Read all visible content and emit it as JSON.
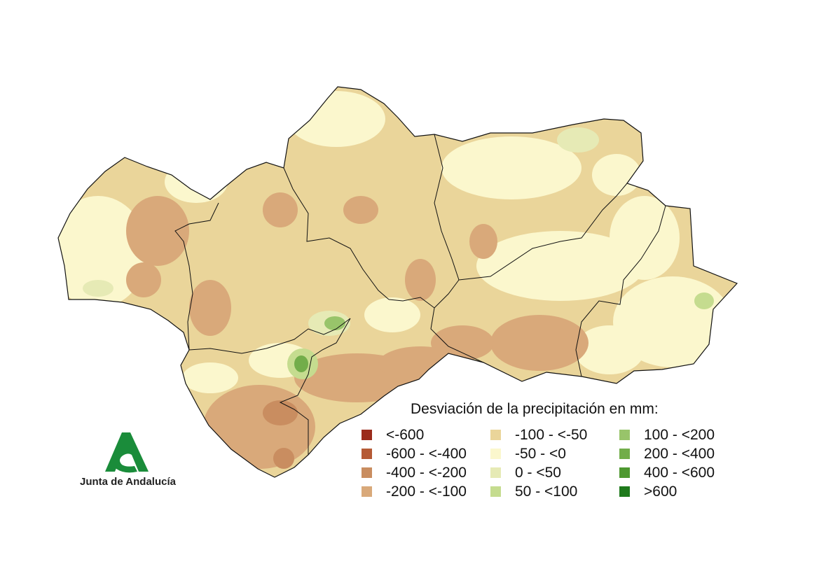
{
  "legend": {
    "title": "Desviación de la precipitación en mm:",
    "items": [
      {
        "label": "<-600",
        "color": "#9b2c1c"
      },
      {
        "label": "-600 - <-400",
        "color": "#b55a35"
      },
      {
        "label": "-400 - <-200",
        "color": "#c98d60"
      },
      {
        "label": "-200 - <-100",
        "color": "#d9a97a"
      },
      {
        "label": "-100 - <-50",
        "color": "#ead59a"
      },
      {
        "label": "-50 - <0",
        "color": "#fbf7cd"
      },
      {
        "label": "0 - <50",
        "color": "#e6eab5"
      },
      {
        "label": "50 - <100",
        "color": "#c5dc8f"
      },
      {
        "label": "100 - <200",
        "color": "#98c46a"
      },
      {
        "label": "200 - <400",
        "color": "#72ad4a"
      },
      {
        "label": "400 - <600",
        "color": "#4e9830"
      },
      {
        "label": ">600",
        "color": "#1f7a1c"
      }
    ]
  },
  "logo": {
    "text": "Junta de Andalucía",
    "color": "#1a8c3a"
  }
}
